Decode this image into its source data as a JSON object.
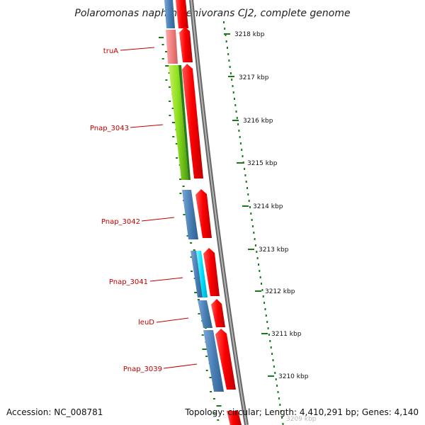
{
  "title": "Polaromonas naphthalenivorans CJ2, complete genome",
  "footer": {
    "accession": "Accession: NC_008781",
    "summary": "Topology: circular; Length: 4,410,291 bp; Genes: 4,140"
  },
  "scale_ticks": [
    "3218 kbp",
    "3217 kbp",
    "3216 kbp",
    "3215 kbp",
    "3214 kbp",
    "3213 kbp",
    "3212 kbp",
    "3211 kbp",
    "3210 kbp",
    "3209 kbp"
  ],
  "gene_labels": [
    "truA",
    "Pnap_3043",
    "Pnap_3042",
    "Pnap_3041",
    "leuD",
    "Pnap_3039"
  ],
  "colors": {
    "background": "#ffffff",
    "backbone": "#888888",
    "forward_gene": "#ff0000",
    "cog_blue": "#4a7fb5",
    "cog_pink": "#f08080",
    "cog_green": "#a8e020",
    "cog_cyan": "#00e0ff",
    "gc_skew": "#1a7a1a",
    "label_red": "#c00000"
  }
}
